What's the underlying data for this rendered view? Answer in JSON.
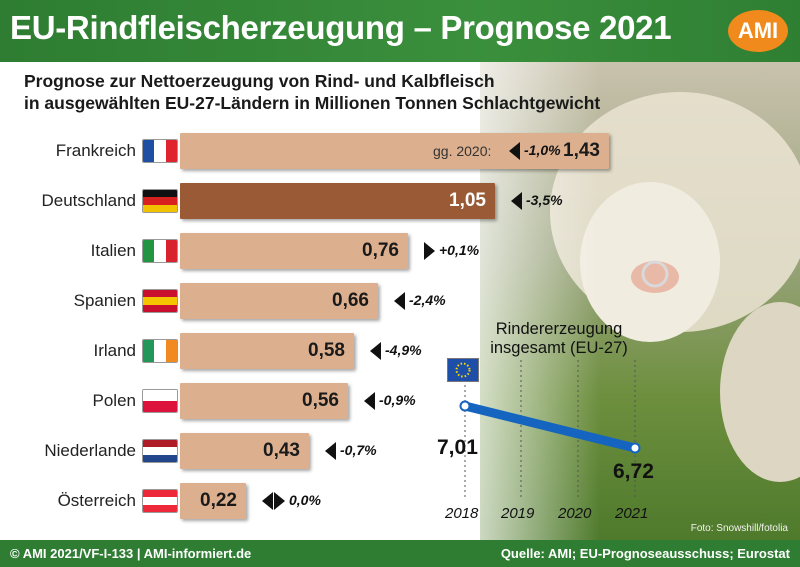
{
  "header": {
    "title": "EU-Rindfleischerzeugung – Prognose 2021",
    "logo": "AMI"
  },
  "subtitle": {
    "line1": "Prognose zur Nettoerzeugung von Rind- und Kalbfleisch",
    "line2": "in ausgewählten EU-27-Ländern in Millionen Tonnen Schlachtgewicht"
  },
  "chart_data": [
    {
      "type": "bar",
      "orientation": "horizontal",
      "unit": "Mio. t",
      "reference_label": "gg. 2020:",
      "categories": [
        "Frankreich",
        "Deutschland",
        "Italien",
        "Spanien",
        "Irland",
        "Polen",
        "Niederlande",
        "Österreich"
      ],
      "values": [
        1.43,
        1.05,
        0.76,
        0.66,
        0.58,
        0.56,
        0.43,
        0.22
      ],
      "value_labels": [
        "1,43",
        "1,05",
        "0,76",
        "0,66",
        "0,58",
        "0,56",
        "0,43",
        "0,22"
      ],
      "changes": [
        "-1,0%",
        "-3,5%",
        "+0,1%",
        "-2,4%",
        "-4,9%",
        "-0,9%",
        "-0,7%",
        "0,0%"
      ],
      "change_direction": [
        "down",
        "down",
        "up",
        "down",
        "down",
        "down",
        "down",
        "flat"
      ],
      "highlight": "Deutschland",
      "bar_color": "#dcaf8e",
      "highlight_color": "#9a5a36"
    },
    {
      "type": "line",
      "title": "Rindererzeugung insgesamt (EU-27)",
      "x": [
        "2018",
        "2019",
        "2020",
        "2021"
      ],
      "series": [
        {
          "points": [
            {
              "x": "2018",
              "y": 7.01
            },
            {
              "x": "2021",
              "y": 6.72
            }
          ],
          "labels": [
            "7,01",
            "6,72"
          ],
          "color": "#1565c0"
        }
      ],
      "grid": true
    }
  ],
  "flags": {
    "Frankreich": {
      "dir": "h",
      "colors": [
        "#1e4fa3",
        "#ffffff",
        "#e0242f"
      ]
    },
    "Deutschland": {
      "dir": "v",
      "colors": [
        "#111111",
        "#d8211f",
        "#f2c200"
      ]
    },
    "Italien": {
      "dir": "h",
      "colors": [
        "#229442",
        "#ffffff",
        "#d8232f"
      ]
    },
    "Spanien": {
      "dir": "v",
      "colors": [
        "#c8102e",
        "#f5c300",
        "#c8102e"
      ]
    },
    "Irland": {
      "dir": "h",
      "colors": [
        "#23975a",
        "#ffffff",
        "#f28a22"
      ]
    },
    "Polen": {
      "dir": "v",
      "colors": [
        "#ffffff",
        "#dc143c"
      ]
    },
    "Niederlande": {
      "dir": "v",
      "colors": [
        "#ae1c28",
        "#ffffff",
        "#21468b"
      ]
    },
    "Österreich": {
      "dir": "v",
      "colors": [
        "#ed2939",
        "#ffffff",
        "#ed2939"
      ]
    }
  },
  "photo_credit": "Foto: Snowshill/fotolia",
  "footer": {
    "left": "© AMI 2021/VF-I-133 | AMI-informiert.de",
    "right": "Quelle: AMI; EU-Prognoseausschuss; Eurostat"
  }
}
